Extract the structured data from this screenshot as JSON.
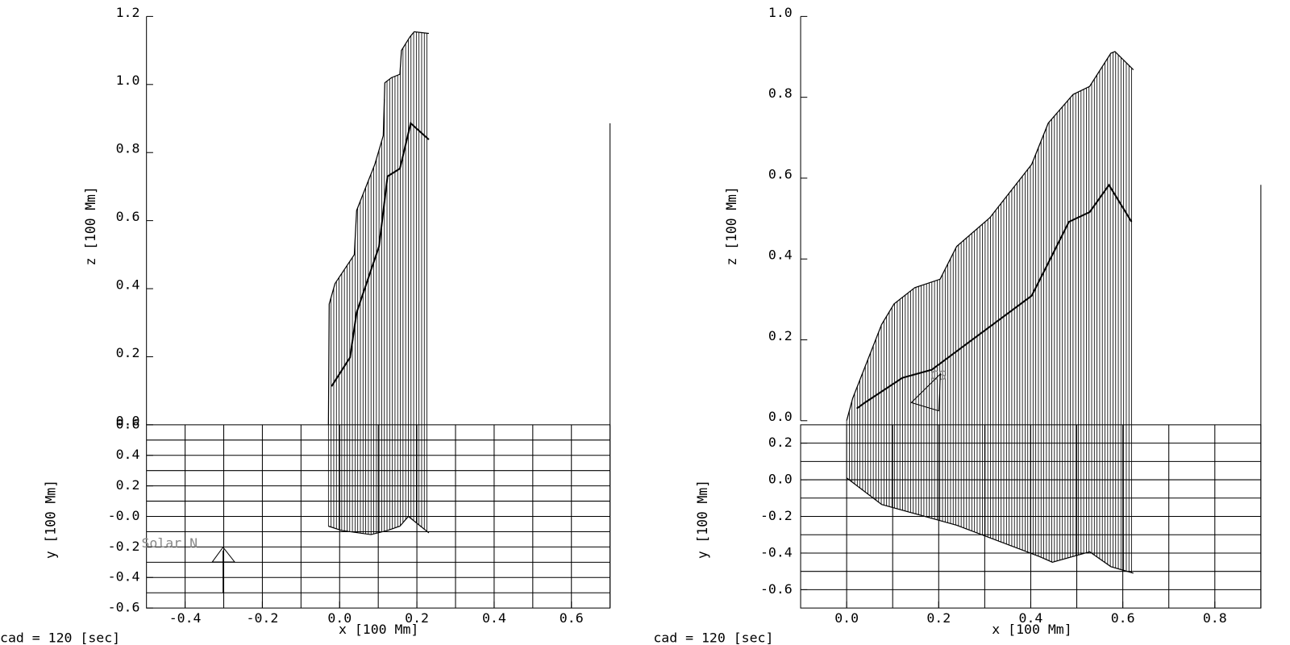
{
  "chart_data": [
    {
      "type": "curtain",
      "footer": "cad =  120 [sec]",
      "xlabel": "x [100 Mm]",
      "zlabel": "z [100 Mm]",
      "ylabel": "y [100 Mm]",
      "annotation": "Solar N",
      "xlim": [
        -0.5,
        0.7
      ],
      "xticks": [
        {
          "value": -0.4,
          "label": "-0.4"
        },
        {
          "value": -0.2,
          "label": "-0.2"
        },
        {
          "value": 0,
          "label": "0.0"
        },
        {
          "value": 0.2,
          "label": "0.2"
        },
        {
          "value": 0.4,
          "label": "0.4"
        },
        {
          "value": 0.6,
          "label": "0.6"
        }
      ],
      "zlim": [
        0,
        1.2
      ],
      "zticks": [
        {
          "value": 0,
          "label": "0.0"
        },
        {
          "value": 0.2,
          "label": "0.2"
        },
        {
          "value": 0.4,
          "label": "0.4"
        },
        {
          "value": 0.6,
          "label": "0.6"
        },
        {
          "value": 0.8,
          "label": "0.8"
        },
        {
          "value": 1,
          "label": "1.0"
        },
        {
          "value": 1.2,
          "label": "1.2"
        }
      ],
      "ylim": [
        -0.6,
        0.6
      ],
      "yticks": [
        {
          "value": -0.6,
          "label": "-0.6"
        },
        {
          "value": -0.4,
          "label": "-0.4"
        },
        {
          "value": -0.2,
          "label": "-0.2"
        },
        {
          "value": 0,
          "label": "-0.0"
        },
        {
          "value": 0.2,
          "label": "0.2"
        },
        {
          "value": 0.4,
          "label": "0.4"
        },
        {
          "value": 0.6,
          "label": "0.6"
        }
      ],
      "x_gridlines": [
        -0.4,
        -0.3,
        -0.2,
        -0.1,
        0,
        0.1,
        0.2,
        0.3,
        0.4,
        0.5,
        0.6
      ],
      "y_gridlines": [
        -0.5,
        -0.4,
        -0.3,
        -0.2,
        -0.1,
        0,
        0.1,
        0.2,
        0.3,
        0.4,
        0.5
      ],
      "color": "#000000",
      "top_edge": {
        "x": [
          -0.029,
          -0.027,
          -0.012,
          0.038,
          0.044,
          0.091,
          0.113,
          0.117,
          0.134,
          0.156,
          0.16,
          0.182,
          0.193,
          0.231
        ],
        "z": [
          0,
          0.355,
          0.415,
          0.5,
          0.63,
          0.765,
          0.85,
          1.005,
          1.02,
          1.03,
          1.1,
          1.14,
          1.155,
          1.15
        ]
      },
      "bottom_edge": {
        "x": [
          -0.029,
          0.005,
          0.081,
          0.124,
          0.156,
          0.178,
          0.231
        ],
        "y": [
          -0.064,
          -0.092,
          -0.119,
          -0.092,
          -0.064,
          0,
          -0.108
        ]
      },
      "center_line": {
        "x": [
          -0.021,
          0.027,
          0.044,
          0.102,
          0.124,
          0.156,
          0.184,
          0.231
        ],
        "z": [
          0.113,
          0.198,
          0.33,
          0.524,
          0.73,
          0.753,
          0.886,
          0.838
        ]
      }
    },
    {
      "type": "curtain",
      "footer": "cad =  120 [sec]",
      "xlabel": "x [100 Mm]",
      "zlabel": "z [100 Mm]",
      "ylabel": "y [100 Mm]",
      "annotation": "CS",
      "xlim": [
        -0.1,
        0.9
      ],
      "xticks": [
        {
          "value": 0,
          "label": "0.0"
        },
        {
          "value": 0.2,
          "label": "0.2"
        },
        {
          "value": 0.4,
          "label": "0.4"
        },
        {
          "value": 0.6,
          "label": "0.6"
        },
        {
          "value": 0.8,
          "label": "0.8"
        }
      ],
      "zlim": [
        0,
        1
      ],
      "zticks": [
        {
          "value": 0,
          "label": "0.0"
        },
        {
          "value": 0.2,
          "label": "0.2"
        },
        {
          "value": 0.4,
          "label": "0.4"
        },
        {
          "value": 0.6,
          "label": "0.6"
        },
        {
          "value": 0.8,
          "label": "0.8"
        },
        {
          "value": 1,
          "label": "1.0"
        }
      ],
      "ylim": [
        -0.7,
        0.3
      ],
      "yticks": [
        {
          "value": -0.6,
          "label": "-0.6"
        },
        {
          "value": -0.4,
          "label": "-0.4"
        },
        {
          "value": -0.2,
          "label": "-0.2"
        },
        {
          "value": 0,
          "label": "0.0"
        },
        {
          "value": 0.2,
          "label": "0.2"
        }
      ],
      "x_gridlines": [
        0,
        0.1,
        0.2,
        0.3,
        0.4,
        0.5,
        0.6,
        0.7,
        0.8
      ],
      "y_gridlines": [
        -0.6,
        -0.5,
        -0.4,
        -0.3,
        -0.2,
        -0.1,
        0,
        0.1,
        0.2
      ],
      "color": "#000000",
      "top_edge": {
        "x": [
          0,
          0.013,
          0.076,
          0.103,
          0.148,
          0.203,
          0.239,
          0.311,
          0.402,
          0.438,
          0.492,
          0.528,
          0.574,
          0.583,
          0.623
        ],
        "z": [
          0,
          0.055,
          0.238,
          0.289,
          0.329,
          0.35,
          0.431,
          0.502,
          0.634,
          0.736,
          0.807,
          0.827,
          0.909,
          0.913,
          0.868
        ]
      },
      "bottom_edge": {
        "x": [
          0,
          0.076,
          0.239,
          0.42,
          0.447,
          0.528,
          0.574,
          0.623
        ],
        "y": [
          0.01,
          -0.135,
          -0.248,
          -0.42,
          -0.45,
          -0.393,
          -0.474,
          -0.51
        ]
      },
      "center_line": {
        "x": [
          0.022,
          0.04,
          0.121,
          0.185,
          0.257,
          0.402,
          0.438,
          0.483,
          0.528,
          0.57,
          0.619
        ],
        "z": [
          0.03,
          0.045,
          0.106,
          0.126,
          0.187,
          0.309,
          0.39,
          0.492,
          0.516,
          0.583,
          0.492
        ]
      }
    }
  ]
}
